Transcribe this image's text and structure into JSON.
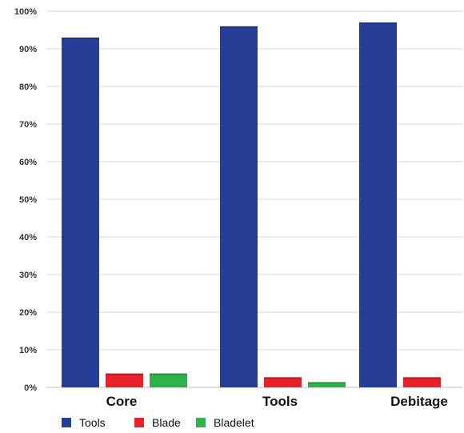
{
  "chart_data": {
    "type": "bar",
    "categories": [
      "Core",
      "Tools",
      "Debitage"
    ],
    "series": [
      {
        "name": "Tools",
        "color": "#263e95",
        "values": [
          93,
          96,
          97
        ]
      },
      {
        "name": "Blade",
        "color": "#e8222a",
        "values": [
          3.7,
          2.7,
          2.7
        ]
      },
      {
        "name": "Bladelet",
        "color": "#2eb24a",
        "values": [
          3.7,
          1.4,
          null
        ]
      }
    ],
    "ylim": [
      0,
      100
    ],
    "yticks": [
      0,
      10,
      20,
      30,
      40,
      50,
      60,
      70,
      80,
      90,
      100
    ],
    "ytick_labels": [
      "0%",
      "10%",
      "20%",
      "30%",
      "40%",
      "50%",
      "60%",
      "70%",
      "80%",
      "90%",
      "100%"
    ],
    "grid": true,
    "legend_position": "bottom-left"
  }
}
